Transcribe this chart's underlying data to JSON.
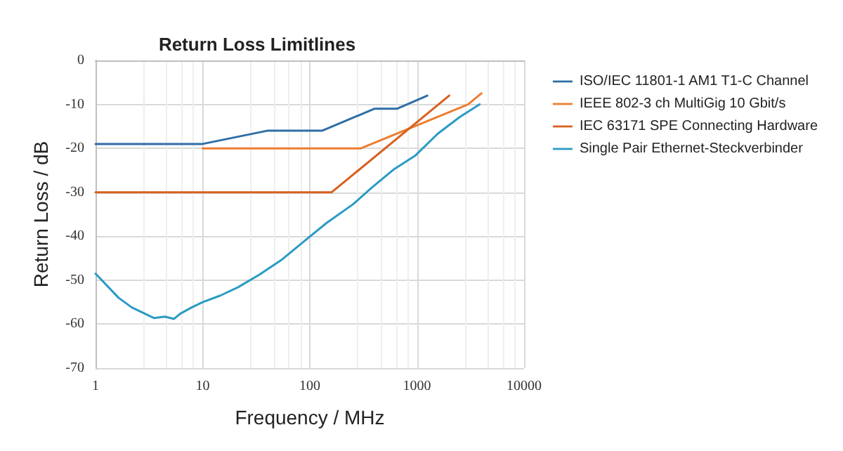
{
  "chart_data": {
    "type": "line",
    "title": "Return Loss Limitlines",
    "xlabel": "Frequency / MHz",
    "ylabel": "Return Loss / dB",
    "log": "x",
    "xlim": [
      1,
      10000
    ],
    "xticks": [
      1,
      10,
      100,
      1000,
      10000
    ],
    "ylim": [
      -70,
      0
    ],
    "yticks": [
      -70,
      -60,
      -50,
      -40,
      -30,
      -20,
      -10,
      0
    ],
    "grid": true,
    "legend": "right",
    "marker": "none",
    "line_style": "solid",
    "series": [
      {
        "name": "ISO/IEC 11801-1 AM1 T1-C Channel",
        "color": "#2e6ea6",
        "x": [
          1,
          10,
          40,
          130,
          400,
          650,
          1250
        ],
        "values": [
          -19,
          -19,
          -16,
          -16,
          -11,
          -11,
          -8
        ]
      },
      {
        "name": "IEEE 802-3 ch MultiGig 10 Gbit/s",
        "color": "#ed7d31",
        "x": [
          10,
          300,
          3000,
          4000
        ],
        "values": [
          -20,
          -20,
          -10,
          -7.5
        ]
      },
      {
        "name": "IEC 63171 SPE Connecting Hardware",
        "color": "#d9601f",
        "x": [
          1,
          160,
          2000
        ],
        "values": [
          -30,
          -30,
          -8
        ]
      },
      {
        "name": "Single Pair Ethernet-Steckverbinder",
        "color": "#2a9bc4",
        "x": [
          1,
          1.64,
          2.18,
          3.5,
          4.45,
          5.4,
          6.2,
          7.9,
          10,
          14.6,
          21.4,
          34,
          55,
          89,
          143,
          254,
          372,
          600,
          970,
          1560,
          2500,
          3850
        ],
        "values": [
          -48.5,
          -54,
          -56.2,
          -58.6,
          -58.3,
          -58.8,
          -57.6,
          -56.2,
          -55,
          -53.5,
          -51.6,
          -48.7,
          -45.3,
          -41.1,
          -37,
          -32.7,
          -29.1,
          -24.9,
          -21.6,
          -16.7,
          -12.9,
          -10
        ]
      }
    ]
  }
}
